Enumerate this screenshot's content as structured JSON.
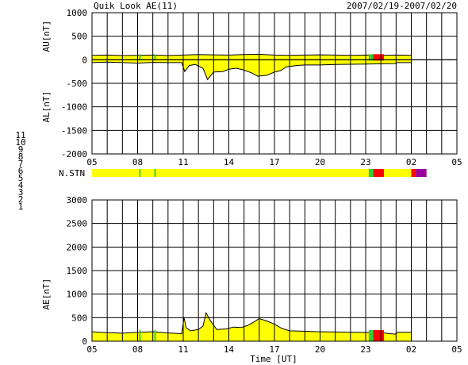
{
  "header": {
    "title": "Quik Look AE(11)",
    "date_range": "2007/02/19-2007/02/20"
  },
  "chart_data": {
    "type": "area",
    "x_tick_labels": [
      "05",
      "08",
      "11",
      "14",
      "17",
      "20",
      "23",
      "02",
      "05"
    ],
    "x_range_hours": [
      0,
      24
    ],
    "xlabel": "Time [UT]",
    "grid": true,
    "panels": [
      {
        "name": "AU/AL",
        "ylabel_upper": "AU[nT]",
        "ylabel_lower": "AL[nT]",
        "ylim": [
          -2000,
          1000
        ],
        "y_ticks": [
          1000,
          500,
          0,
          -500,
          -1000,
          -1500,
          -2000
        ],
        "data_end_hour": 21.0,
        "au": [
          [
            0,
            95
          ],
          [
            1,
            100
          ],
          [
            2,
            90
          ],
          [
            3,
            95
          ],
          [
            4,
            100
          ],
          [
            5,
            90
          ],
          [
            6,
            100
          ],
          [
            7,
            110
          ],
          [
            8,
            105
          ],
          [
            9,
            100
          ],
          [
            10,
            110
          ],
          [
            11,
            115
          ],
          [
            12,
            100
          ],
          [
            13,
            95
          ],
          [
            14,
            100
          ],
          [
            15,
            105
          ],
          [
            16,
            100
          ],
          [
            17,
            95
          ],
          [
            18,
            100
          ],
          [
            19,
            95
          ],
          [
            20,
            100
          ],
          [
            21,
            95
          ]
        ],
        "al": [
          [
            0,
            -60
          ],
          [
            1,
            -50
          ],
          [
            2,
            -60
          ],
          [
            3,
            -70
          ],
          [
            4,
            -55
          ],
          [
            5,
            -60
          ],
          [
            5.9,
            -60
          ],
          [
            6.1,
            -250
          ],
          [
            6.4,
            -120
          ],
          [
            6.8,
            -100
          ],
          [
            7.3,
            -180
          ],
          [
            7.6,
            -420
          ],
          [
            8,
            -260
          ],
          [
            8.6,
            -250
          ],
          [
            9,
            -200
          ],
          [
            9.5,
            -180
          ],
          [
            10,
            -220
          ],
          [
            10.5,
            -280
          ],
          [
            10.9,
            -350
          ],
          [
            11.5,
            -330
          ],
          [
            12,
            -260
          ],
          [
            12.4,
            -230
          ],
          [
            12.8,
            -150
          ],
          [
            13.5,
            -120
          ],
          [
            14,
            -110
          ],
          [
            15,
            -110
          ],
          [
            16,
            -100
          ],
          [
            17,
            -95
          ],
          [
            18,
            -90
          ],
          [
            19,
            -85
          ],
          [
            19.9,
            -80
          ],
          [
            20.1,
            -60
          ],
          [
            21,
            -60
          ]
        ]
      },
      {
        "name": "AE",
        "ylabel": "AE[nT]",
        "ylim": [
          0,
          3000
        ],
        "y_ticks": [
          3000,
          2500,
          2000,
          1500,
          1000,
          500,
          0
        ],
        "data_end_hour": 21.0,
        "ae": [
          [
            0,
            200
          ],
          [
            1,
            180
          ],
          [
            2,
            170
          ],
          [
            3,
            190
          ],
          [
            4,
            200
          ],
          [
            5,
            175
          ],
          [
            5.9,
            160
          ],
          [
            6.05,
            500
          ],
          [
            6.2,
            280
          ],
          [
            6.5,
            220
          ],
          [
            7,
            250
          ],
          [
            7.3,
            320
          ],
          [
            7.5,
            600
          ],
          [
            7.8,
            430
          ],
          [
            8.2,
            250
          ],
          [
            8.8,
            260
          ],
          [
            9.3,
            300
          ],
          [
            9.8,
            290
          ],
          [
            10.2,
            330
          ],
          [
            10.6,
            400
          ],
          [
            11,
            480
          ],
          [
            11.5,
            430
          ],
          [
            12,
            360
          ],
          [
            12.5,
            270
          ],
          [
            13,
            220
          ],
          [
            14,
            210
          ],
          [
            15,
            200
          ],
          [
            16,
            195
          ],
          [
            17,
            190
          ],
          [
            18,
            185
          ],
          [
            19,
            180
          ],
          [
            19.95,
            150
          ],
          [
            20.1,
            190
          ],
          [
            21,
            190
          ]
        ]
      }
    ],
    "station_bar": {
      "label": "N.STN",
      "segments": [
        {
          "from": 0,
          "to": 3.1,
          "color": "#ffff00"
        },
        {
          "from": 3.1,
          "to": 3.2,
          "color": "#33cc33"
        },
        {
          "from": 3.2,
          "to": 4.1,
          "color": "#ffff00"
        },
        {
          "from": 4.1,
          "to": 4.2,
          "color": "#33cc33"
        },
        {
          "from": 4.2,
          "to": 18.2,
          "color": "#ffff00"
        },
        {
          "from": 18.2,
          "to": 18.5,
          "color": "#33cc33"
        },
        {
          "from": 18.5,
          "to": 19.2,
          "color": "#ff0000"
        },
        {
          "from": 19.2,
          "to": 21.0,
          "color": "#ffff00"
        },
        {
          "from": 21.0,
          "to": 21.3,
          "color": "#ff0000"
        },
        {
          "from": 21.3,
          "to": 22.0,
          "color": "#990099"
        }
      ]
    },
    "lower_panel_status": {
      "segments": [
        {
          "from": 18.2,
          "to": 18.5,
          "color": "#33cc33"
        },
        {
          "from": 18.5,
          "to": 19.2,
          "color": "#ff0000"
        },
        {
          "from": 21.0,
          "to": 21.3,
          "color": "#ff0000"
        }
      ]
    },
    "legend": {
      "placement": "left",
      "entries": [
        {
          "label": "11",
          "color": "#00cccc"
        },
        {
          "label": "10",
          "color": "#ff00ff"
        },
        {
          "label": "9",
          "color": "#0000cc"
        },
        {
          "label": "8",
          "color": "#ffff00"
        },
        {
          "label": "7",
          "color": "#33cc33"
        },
        {
          "label": "6",
          "color": "#ff0000"
        },
        {
          "label": "5",
          "color": "#bbbbbb"
        },
        {
          "label": "4",
          "color": "#bbbbbb"
        },
        {
          "label": "3",
          "color": "#008888"
        },
        {
          "label": "2",
          "color": "#990099"
        },
        {
          "label": "1",
          "color": "#0000aa"
        }
      ]
    }
  }
}
